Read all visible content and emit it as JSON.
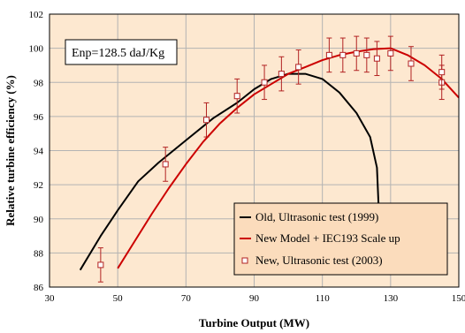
{
  "chart_data": {
    "type": "line",
    "title": "",
    "xlabel": "Turbine Output (MW)",
    "ylabel": "Relative turbine efficiency (%)",
    "xlim": [
      30,
      150
    ],
    "ylim": [
      86,
      102
    ],
    "xticks": [
      30,
      50,
      70,
      90,
      110,
      130,
      150
    ],
    "yticks": [
      86,
      88,
      90,
      92,
      94,
      96,
      98,
      100,
      102
    ],
    "grid": true,
    "legend_position": "bottom-right",
    "annotation": "Enp=128.5 daJ/Kg",
    "series": [
      {
        "name": "Old, Ultrasonic test (1999)",
        "kind": "line",
        "color": "#000000",
        "points": [
          [
            39,
            87.0
          ],
          [
            45,
            89.0
          ],
          [
            50,
            90.5
          ],
          [
            56,
            92.2
          ],
          [
            62,
            93.3
          ],
          [
            70,
            94.6
          ],
          [
            78,
            95.9
          ],
          [
            85,
            96.8
          ],
          [
            90,
            97.6
          ],
          [
            95,
            98.2
          ],
          [
            100,
            98.5
          ],
          [
            105,
            98.5
          ],
          [
            110,
            98.2
          ],
          [
            115,
            97.4
          ],
          [
            120,
            96.2
          ],
          [
            124,
            94.8
          ],
          [
            126,
            93.0
          ],
          [
            126.5,
            90.7
          ]
        ]
      },
      {
        "name": "New Model + IEC193 Scale up",
        "kind": "line",
        "color": "#cc0000",
        "points": [
          [
            50,
            87.1
          ],
          [
            55,
            88.7
          ],
          [
            60,
            90.3
          ],
          [
            65,
            91.8
          ],
          [
            70,
            93.2
          ],
          [
            75,
            94.5
          ],
          [
            80,
            95.6
          ],
          [
            85,
            96.5
          ],
          [
            90,
            97.3
          ],
          [
            95,
            97.9
          ],
          [
            100,
            98.5
          ],
          [
            105,
            98.9
          ],
          [
            110,
            99.3
          ],
          [
            115,
            99.6
          ],
          [
            120,
            99.8
          ],
          [
            125,
            99.95
          ],
          [
            130,
            100.0
          ],
          [
            135,
            99.6
          ],
          [
            140,
            99.0
          ],
          [
            145,
            98.2
          ],
          [
            150,
            97.1
          ]
        ]
      },
      {
        "name": "New, Ultrasonic test (2003)",
        "kind": "scatter_errorbar",
        "color": "#b22222",
        "points": [
          {
            "x": 45,
            "y": 87.3,
            "err": 1.0
          },
          {
            "x": 64,
            "y": 93.2,
            "err": 1.0
          },
          {
            "x": 76,
            "y": 95.8,
            "err": 1.0
          },
          {
            "x": 85,
            "y": 97.2,
            "err": 1.0
          },
          {
            "x": 93,
            "y": 98.0,
            "err": 1.0
          },
          {
            "x": 98,
            "y": 98.5,
            "err": 1.0
          },
          {
            "x": 103,
            "y": 98.9,
            "err": 1.0
          },
          {
            "x": 112,
            "y": 99.6,
            "err": 1.0
          },
          {
            "x": 116,
            "y": 99.6,
            "err": 1.0
          },
          {
            "x": 120,
            "y": 99.7,
            "err": 1.0
          },
          {
            "x": 123,
            "y": 99.6,
            "err": 1.0
          },
          {
            "x": 126,
            "y": 99.4,
            "err": 1.0
          },
          {
            "x": 130,
            "y": 99.7,
            "err": 1.0
          },
          {
            "x": 136,
            "y": 99.1,
            "err": 1.0
          },
          {
            "x": 145,
            "y": 98.0,
            "err": 1.0
          },
          {
            "x": 145,
            "y": 98.6,
            "err": 1.0
          }
        ]
      }
    ]
  },
  "colors": {
    "plot_background": "#fde8d0",
    "legend_background": "#fbdcbc",
    "grid": "#b3b3b3"
  }
}
